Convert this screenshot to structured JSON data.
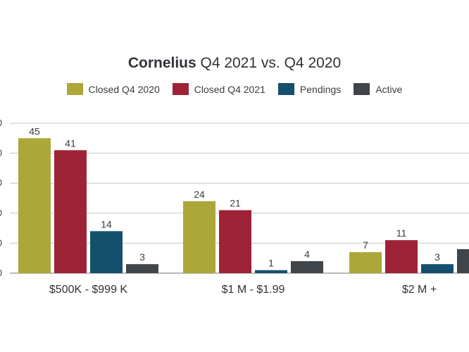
{
  "chart_data": {
    "type": "bar",
    "title_bold": "Cornelius",
    "title_rest": "Q4 2021 vs. Q4 2020",
    "categories": [
      "$500K - $999 K",
      "$1 M - $1.99",
      "$2 M +"
    ],
    "series": [
      {
        "name": "Closed Q4 2020",
        "color": "#aca739",
        "values": [
          45,
          24,
          7
        ]
      },
      {
        "name": "Closed Q4 2021",
        "color": "#9e2236",
        "values": [
          41,
          21,
          11
        ]
      },
      {
        "name": "Pendings",
        "color": "#14506e",
        "values": [
          14,
          1,
          3
        ]
      },
      {
        "name": "Active",
        "color": "#404549",
        "values": [
          3,
          4,
          8
        ]
      }
    ],
    "yticks": [
      "0",
      "0",
      "0",
      "0",
      "0",
      "0"
    ],
    "ylim": [
      0,
      50
    ],
    "grid": true,
    "legend_position": "top-center"
  }
}
